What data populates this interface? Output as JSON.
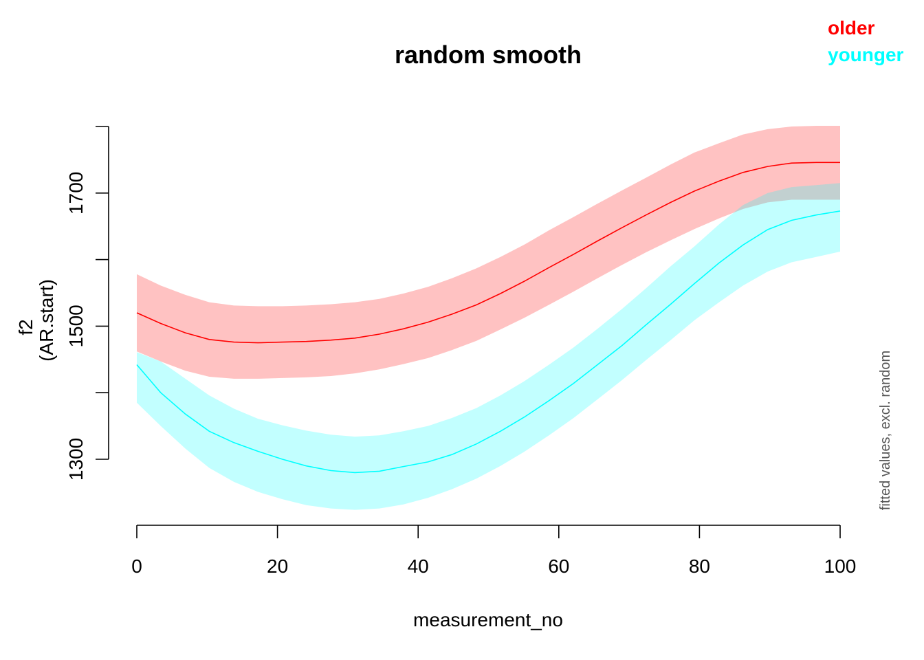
{
  "chart_data": {
    "type": "line",
    "title": "random smooth",
    "xlabel": "measurement_no",
    "ylabel_line1": "f2",
    "ylabel_line2": "(AR.start)",
    "side_note": "fitted values, excl. random",
    "xlim": [
      0,
      100
    ],
    "ylim": [
      1200,
      1800
    ],
    "x_ticks": [
      0,
      20,
      40,
      60,
      80,
      100
    ],
    "x_tick_labels": [
      "0",
      "20",
      "40",
      "60",
      "80",
      "100"
    ],
    "y_ticks": [
      1300,
      1400,
      1500,
      1600,
      1700,
      1800
    ],
    "y_tick_labels": [
      "1300",
      "",
      "1500",
      "",
      "1700",
      ""
    ],
    "grid": false,
    "legend_position": "top-right",
    "x": [
      0,
      3.4,
      6.9,
      10.3,
      13.8,
      17.2,
      20.7,
      24.1,
      27.6,
      31,
      34.5,
      37.9,
      41.4,
      44.8,
      48.3,
      51.7,
      55.2,
      58.6,
      62.1,
      65.5,
      69,
      72.4,
      75.9,
      79.3,
      82.8,
      86.2,
      89.7,
      93.1,
      96.6,
      100
    ],
    "series": [
      {
        "name": "older",
        "color": "#ff0000",
        "band_color": "#ff0000",
        "fit": [
          1520,
          1504,
          1490,
          1480,
          1476,
          1475,
          1476,
          1477,
          1479,
          1482,
          1488,
          1496,
          1506,
          1518,
          1532,
          1549,
          1568,
          1588,
          1608,
          1628,
          1648,
          1667,
          1686,
          1703,
          1718,
          1731,
          1740,
          1745,
          1746,
          1746
        ],
        "lower": [
          1462,
          1447,
          1433,
          1424,
          1421,
          1421,
          1422,
          1423,
          1425,
          1429,
          1435,
          1443,
          1452,
          1464,
          1478,
          1495,
          1513,
          1532,
          1552,
          1572,
          1592,
          1611,
          1629,
          1646,
          1662,
          1676,
          1686,
          1690,
          1690,
          1690
        ],
        "upper": [
          1578,
          1561,
          1547,
          1536,
          1531,
          1530,
          1530,
          1531,
          1533,
          1536,
          1541,
          1549,
          1559,
          1572,
          1587,
          1604,
          1623,
          1644,
          1664,
          1684,
          1704,
          1723,
          1743,
          1761,
          1775,
          1788,
          1796,
          1800,
          1801,
          1801
        ]
      },
      {
        "name": "younger",
        "color": "#00ffff",
        "band_color": "#00ffff",
        "fit": [
          1442,
          1400,
          1368,
          1342,
          1325,
          1312,
          1300,
          1290,
          1283,
          1280,
          1282,
          1289,
          1296,
          1307,
          1323,
          1342,
          1364,
          1388,
          1414,
          1442,
          1471,
          1502,
          1533,
          1564,
          1595,
          1622,
          1645,
          1659,
          1667,
          1673
        ],
        "lower": [
          1385,
          1350,
          1316,
          1287,
          1266,
          1251,
          1240,
          1231,
          1226,
          1224,
          1226,
          1232,
          1242,
          1255,
          1271,
          1290,
          1312,
          1336,
          1362,
          1390,
          1419,
          1449,
          1479,
          1509,
          1536,
          1561,
          1582,
          1596,
          1604,
          1612
        ],
        "upper": [
          1461,
          1447,
          1421,
          1396,
          1376,
          1361,
          1351,
          1343,
          1337,
          1334,
          1336,
          1342,
          1350,
          1362,
          1377,
          1396,
          1418,
          1442,
          1468,
          1496,
          1526,
          1557,
          1590,
          1620,
          1653,
          1682,
          1700,
          1709,
          1712,
          1715
        ]
      }
    ]
  }
}
